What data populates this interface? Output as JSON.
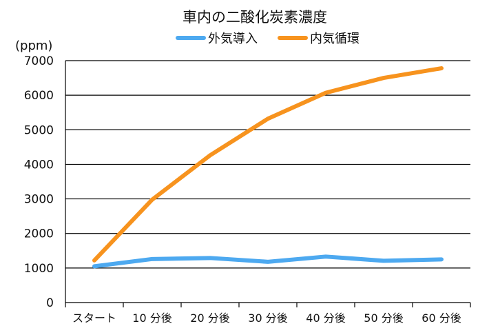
{
  "chart_data": {
    "type": "line",
    "title": "車内の二酸化炭素濃度",
    "ylabel": "(ppm)",
    "xlabel": "",
    "categories": [
      "スタート",
      "10 分後",
      "20 分後",
      "30 分後",
      "40 分後",
      "50 分後",
      "60 分後"
    ],
    "series": [
      {
        "name": "外気導入",
        "color": "#4da9f0",
        "values": [
          1050,
          1260,
          1290,
          1180,
          1330,
          1210,
          1250
        ]
      },
      {
        "name": "内気循環",
        "color": "#f7931e",
        "values": [
          1220,
          2980,
          4260,
          5320,
          6070,
          6500,
          6780
        ]
      }
    ],
    "ylim": [
      0,
      7000
    ],
    "yticks": [
      0,
      1000,
      2000,
      3000,
      4000,
      5000,
      6000,
      7000
    ],
    "grid": true,
    "legend_position": "top-center"
  }
}
